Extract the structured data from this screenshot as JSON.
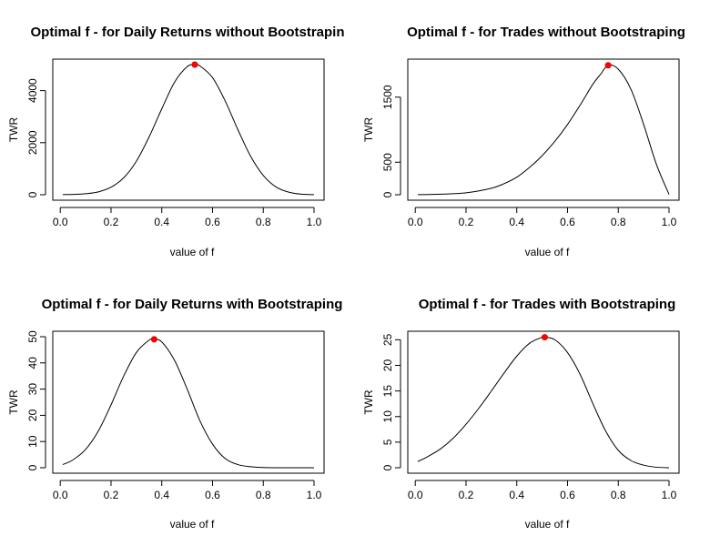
{
  "chart_data": [
    {
      "type": "line",
      "title": "Optimal f - for Daily Returns without Bootstrapin",
      "xlabel": "value of f",
      "ylabel": "TWR",
      "xlim": [
        0.01,
        1.0
      ],
      "ylim": [
        0,
        5000
      ],
      "xticks": [
        "0.0",
        "0.2",
        "0.4",
        "0.6",
        "0.8",
        "1.0"
      ],
      "yticks": [
        "0",
        "2000",
        "4000"
      ],
      "series": [
        {
          "x": [
            0.01,
            0.05,
            0.1,
            0.15,
            0.2,
            0.25,
            0.3,
            0.35,
            0.4,
            0.45,
            0.5,
            0.53,
            0.55,
            0.6,
            0.65,
            0.7,
            0.75,
            0.8,
            0.85,
            0.9,
            0.95,
            1.0
          ],
          "y": [
            5,
            15,
            40,
            110,
            290,
            650,
            1290,
            2220,
            3300,
            4320,
            4920,
            5000,
            4950,
            4500,
            3600,
            2500,
            1480,
            740,
            300,
            100,
            20,
            3
          ]
        }
      ],
      "max_point": {
        "x": 0.53,
        "y": 5000
      }
    },
    {
      "type": "line",
      "title": "Optimal f - for Trades without Bootstraping",
      "xlabel": "value of f",
      "ylabel": "TWR",
      "xlim": [
        0.01,
        1.0
      ],
      "ylim": [
        0,
        2000
      ],
      "xticks": [
        "0.0",
        "0.2",
        "0.4",
        "0.6",
        "0.8",
        "1.0"
      ],
      "yticks": [
        "0",
        "500",
        "1500"
      ],
      "series": [
        {
          "x": [
            0.01,
            0.1,
            0.2,
            0.3,
            0.35,
            0.4,
            0.45,
            0.5,
            0.55,
            0.6,
            0.65,
            0.7,
            0.73,
            0.76,
            0.8,
            0.85,
            0.9,
            0.95,
            1.0
          ],
          "y": [
            1,
            8,
            30,
            100,
            170,
            270,
            420,
            600,
            820,
            1080,
            1380,
            1700,
            1850,
            1990,
            1930,
            1620,
            1080,
            470,
            5
          ]
        }
      ],
      "max_point": {
        "x": 0.76,
        "y": 1990
      }
    },
    {
      "type": "line",
      "title": "Optimal f - for Daily Returns with Bootstraping",
      "xlabel": "value of f",
      "ylabel": "TWR",
      "xlim": [
        0.01,
        1.0
      ],
      "ylim": [
        0,
        50
      ],
      "xticks": [
        "0.0",
        "0.2",
        "0.4",
        "0.6",
        "0.8",
        "1.0"
      ],
      "yticks": [
        "0",
        "10",
        "20",
        "30",
        "40",
        "50"
      ],
      "series": [
        {
          "x": [
            0.01,
            0.05,
            0.1,
            0.15,
            0.2,
            0.25,
            0.3,
            0.35,
            0.37,
            0.4,
            0.45,
            0.5,
            0.55,
            0.6,
            0.65,
            0.7,
            0.75,
            0.8,
            0.9,
            1.0
          ],
          "y": [
            1.2,
            3,
            7,
            14,
            24,
            35,
            44,
            48.7,
            49,
            48,
            41,
            30,
            18,
            9,
            3.5,
            1.2,
            0.4,
            0.1,
            0,
            0
          ]
        }
      ],
      "max_point": {
        "x": 0.37,
        "y": 49
      }
    },
    {
      "type": "line",
      "title": "Optimal f - for Trades with Bootstraping",
      "xlabel": "value of f",
      "ylabel": "TWR",
      "xlim": [
        0.01,
        1.0
      ],
      "ylim": [
        0,
        25.6
      ],
      "xticks": [
        "0.0",
        "0.2",
        "0.4",
        "0.6",
        "0.8",
        "1.0"
      ],
      "yticks": [
        "0",
        "5",
        "10",
        "15",
        "20",
        "25"
      ],
      "series": [
        {
          "x": [
            0.01,
            0.05,
            0.1,
            0.15,
            0.2,
            0.25,
            0.3,
            0.35,
            0.4,
            0.45,
            0.5,
            0.51,
            0.55,
            0.6,
            0.65,
            0.7,
            0.75,
            0.8,
            0.85,
            0.9,
            0.95,
            1.0
          ],
          "y": [
            1.2,
            2.2,
            3.7,
            5.8,
            8.5,
            11.6,
            15,
            18.5,
            21.8,
            24.3,
            25.5,
            25.5,
            25,
            22.5,
            18.2,
            12.5,
            7.2,
            3.4,
            1.4,
            0.5,
            0.1,
            0
          ]
        }
      ],
      "max_point": {
        "x": 0.51,
        "y": 25.5
      }
    }
  ]
}
